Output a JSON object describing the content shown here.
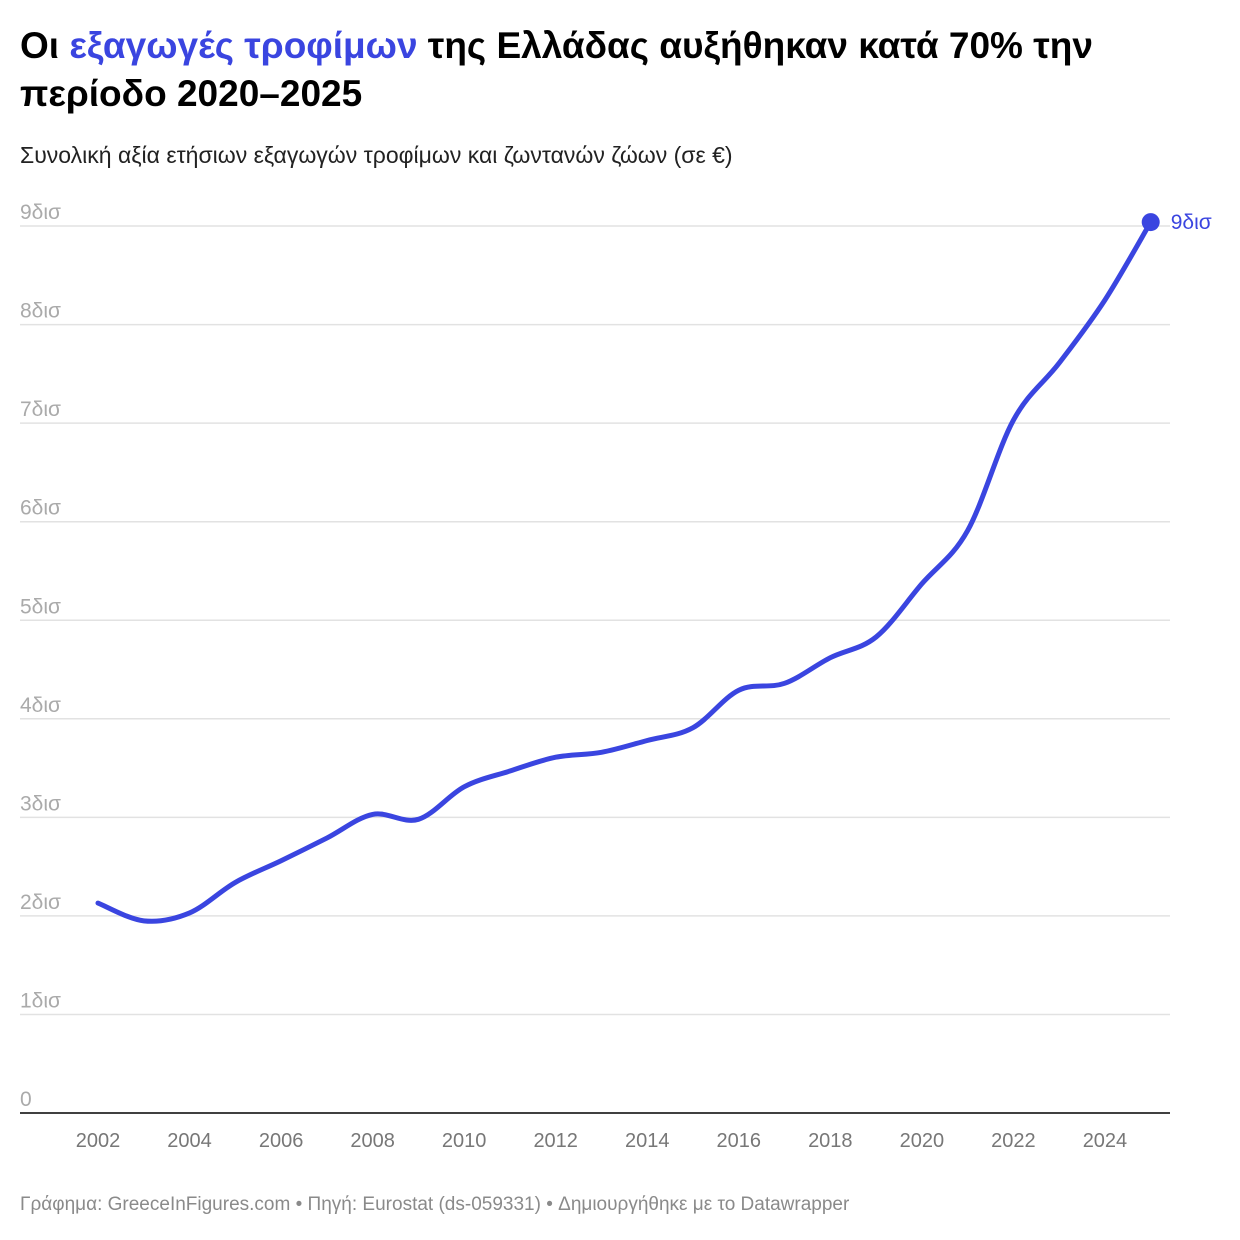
{
  "title": {
    "pre": "Οι ",
    "highlight": "εξαγωγές τροφίμων",
    "post": " της Ελλάδας αυξήθηκαν κατά 70% την περίοδο 2020–2025"
  },
  "subtitle": "Συνολική αξία ετήσιων εξαγωγών τροφίμων και ζωντανών ζώων (σε €)",
  "footer": "Γράφημα: GreeceInFigures.com • Πηγή: Eurostat (ds-059331) • Δημιουργήθηκε με το Datawrapper",
  "colors": {
    "line": "#3a45e0",
    "grid": "#e2e2e2",
    "axis": "#000000"
  },
  "chart_data": {
    "type": "line",
    "title": "Οι εξαγωγές τροφίμων της Ελλάδας αυξήθηκαν κατά 70% την περίοδο 2020–2025",
    "subtitle": "Συνολική αξία ετήσιων εξαγωγών τροφίμων και ζωντανών ζώων (σε €)",
    "x": [
      2002,
      2003,
      2004,
      2005,
      2006,
      2007,
      2008,
      2009,
      2010,
      2011,
      2012,
      2013,
      2014,
      2015,
      2016,
      2017,
      2018,
      2019,
      2020,
      2021,
      2022,
      2023,
      2024,
      2025
    ],
    "series": [
      {
        "values": [
          2.13,
          1.95,
          2.03,
          2.34,
          2.56,
          2.79,
          3.03,
          2.98,
          3.31,
          3.47,
          3.61,
          3.66,
          3.78,
          3.91,
          4.29,
          4.36,
          4.62,
          4.83,
          5.37,
          5.91,
          7.03,
          7.61,
          8.25,
          9.04
        ]
      }
    ],
    "ylim": [
      0,
      9
    ],
    "xlim": [
      2001.8,
      2025.5
    ],
    "yticks": [
      0,
      1,
      2,
      3,
      4,
      5,
      6,
      7,
      8,
      9
    ],
    "ytick_labels": [
      "0",
      "1δισ",
      "2δισ",
      "3δισ",
      "4δισ",
      "5δισ",
      "6δισ",
      "7δισ",
      "8δισ",
      "9δισ"
    ],
    "xticks": [
      2002,
      2004,
      2006,
      2008,
      2010,
      2012,
      2014,
      2016,
      2018,
      2020,
      2022,
      2024
    ],
    "xtick_labels": [
      "2002",
      "2004",
      "2006",
      "2008",
      "2010",
      "2012",
      "2014",
      "2016",
      "2018",
      "2020",
      "2022",
      "2024"
    ],
    "end_label": "9δισ",
    "grid": true,
    "legend": "none"
  }
}
